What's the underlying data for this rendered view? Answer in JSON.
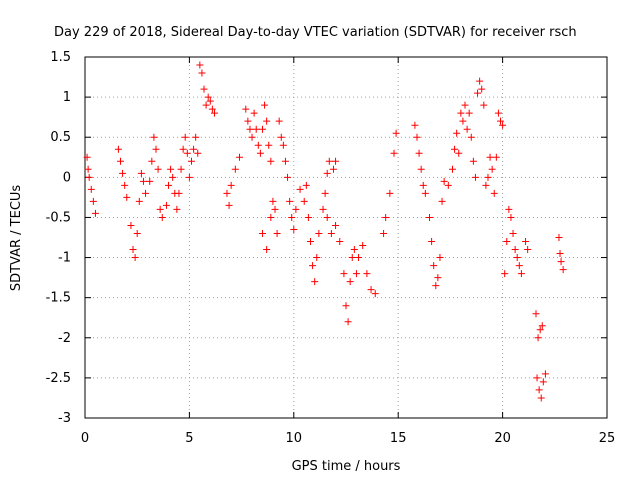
{
  "chart_data": {
    "type": "scatter",
    "title": "Day 229 of 2018, Sidereal Day-to-day VTEC variation (SDTVAR) for receiver rsch",
    "xlabel": "GPS time / hours",
    "ylabel": "SDTVAR / TECUs",
    "xlim": [
      0,
      25
    ],
    "ylim": [
      -3,
      1.5
    ],
    "xticks": [
      "0",
      "5",
      "10",
      "15",
      "20",
      "25"
    ],
    "yticks": [
      "-3",
      "-2.5",
      "-2",
      "-1.5",
      "-1",
      "-0.5",
      "0",
      "0.5",
      "1",
      "1.5"
    ],
    "grid": true,
    "marker": "+",
    "series": [
      {
        "color": "#ff0000",
        "points": [
          [
            0.1,
            0.25
          ],
          [
            0.15,
            0.1
          ],
          [
            0.2,
            0.0
          ],
          [
            0.3,
            -0.15
          ],
          [
            0.4,
            -0.3
          ],
          [
            0.5,
            -0.45
          ],
          [
            1.6,
            0.35
          ],
          [
            1.7,
            0.2
          ],
          [
            1.8,
            0.05
          ],
          [
            1.9,
            -0.1
          ],
          [
            2.0,
            -0.25
          ],
          [
            2.2,
            -0.6
          ],
          [
            2.3,
            -0.9
          ],
          [
            2.4,
            -1.0
          ],
          [
            2.5,
            -0.7
          ],
          [
            2.6,
            -0.3
          ],
          [
            2.7,
            0.05
          ],
          [
            2.8,
            -0.05
          ],
          [
            2.9,
            -0.2
          ],
          [
            3.1,
            -0.05
          ],
          [
            3.2,
            0.2
          ],
          [
            3.3,
            0.5
          ],
          [
            3.4,
            0.35
          ],
          [
            3.5,
            0.1
          ],
          [
            3.6,
            -0.4
          ],
          [
            3.7,
            -0.5
          ],
          [
            3.9,
            -0.35
          ],
          [
            4.0,
            -0.1
          ],
          [
            4.1,
            0.1
          ],
          [
            4.2,
            0.0
          ],
          [
            4.3,
            -0.2
          ],
          [
            4.4,
            -0.4
          ],
          [
            4.5,
            -0.2
          ],
          [
            4.6,
            0.1
          ],
          [
            4.7,
            0.35
          ],
          [
            4.8,
            0.5
          ],
          [
            4.9,
            0.3
          ],
          [
            5.0,
            0.0
          ],
          [
            5.1,
            0.2
          ],
          [
            5.2,
            0.35
          ],
          [
            5.3,
            0.5
          ],
          [
            5.4,
            0.3
          ],
          [
            5.5,
            1.4
          ],
          [
            5.6,
            1.3
          ],
          [
            5.7,
            1.1
          ],
          [
            5.8,
            0.9
          ],
          [
            5.9,
            1.0
          ],
          [
            6.0,
            0.95
          ],
          [
            6.1,
            0.85
          ],
          [
            6.2,
            0.8
          ],
          [
            6.8,
            -0.2
          ],
          [
            6.9,
            -0.35
          ],
          [
            7.0,
            -0.1
          ],
          [
            7.2,
            0.1
          ],
          [
            7.4,
            0.25
          ],
          [
            7.7,
            0.85
          ],
          [
            7.8,
            0.7
          ],
          [
            7.9,
            0.6
          ],
          [
            8.0,
            0.5
          ],
          [
            8.1,
            0.8
          ],
          [
            8.2,
            0.6
          ],
          [
            8.3,
            0.4
          ],
          [
            8.4,
            0.3
          ],
          [
            8.5,
            0.6
          ],
          [
            8.6,
            0.9
          ],
          [
            8.7,
            0.7
          ],
          [
            8.8,
            0.4
          ],
          [
            8.9,
            0.2
          ],
          [
            8.5,
            -0.7
          ],
          [
            8.7,
            -0.9
          ],
          [
            8.9,
            -0.5
          ],
          [
            9.0,
            -0.3
          ],
          [
            9.1,
            -0.4
          ],
          [
            9.2,
            -0.7
          ],
          [
            9.3,
            0.7
          ],
          [
            9.4,
            0.5
          ],
          [
            9.5,
            0.4
          ],
          [
            9.6,
            0.2
          ],
          [
            9.7,
            0.0
          ],
          [
            9.8,
            -0.3
          ],
          [
            9.9,
            -0.5
          ],
          [
            10.0,
            -0.65
          ],
          [
            10.1,
            -0.4
          ],
          [
            10.3,
            -0.15
          ],
          [
            10.5,
            -0.3
          ],
          [
            10.6,
            -0.1
          ],
          [
            10.7,
            -0.5
          ],
          [
            10.8,
            -0.8
          ],
          [
            10.9,
            -1.1
          ],
          [
            11.0,
            -1.3
          ],
          [
            11.1,
            -1.0
          ],
          [
            11.2,
            -0.7
          ],
          [
            11.4,
            -0.4
          ],
          [
            11.5,
            -0.2
          ],
          [
            11.6,
            0.05
          ],
          [
            11.7,
            0.2
          ],
          [
            11.9,
            0.1
          ],
          [
            12.0,
            0.2
          ],
          [
            11.6,
            -0.5
          ],
          [
            11.8,
            -0.7
          ],
          [
            12.0,
            -0.6
          ],
          [
            12.2,
            -0.8
          ],
          [
            12.4,
            -1.2
          ],
          [
            12.5,
            -1.6
          ],
          [
            12.6,
            -1.8
          ],
          [
            12.7,
            -1.3
          ],
          [
            12.8,
            -1.0
          ],
          [
            12.9,
            -0.9
          ],
          [
            13.0,
            -1.2
          ],
          [
            13.1,
            -1.0
          ],
          [
            13.3,
            -0.85
          ],
          [
            13.5,
            -1.2
          ],
          [
            13.7,
            -1.4
          ],
          [
            13.9,
            -1.45
          ],
          [
            14.3,
            -0.7
          ],
          [
            14.4,
            -0.5
          ],
          [
            14.6,
            -0.2
          ],
          [
            14.8,
            0.3
          ],
          [
            14.9,
            0.55
          ],
          [
            15.8,
            0.65
          ],
          [
            15.9,
            0.5
          ],
          [
            16.0,
            0.3
          ],
          [
            16.1,
            0.1
          ],
          [
            16.2,
            -0.1
          ],
          [
            16.3,
            -0.2
          ],
          [
            16.5,
            -0.5
          ],
          [
            16.6,
            -0.8
          ],
          [
            16.7,
            -1.1
          ],
          [
            16.8,
            -1.35
          ],
          [
            16.9,
            -1.25
          ],
          [
            17.0,
            -1.0
          ],
          [
            17.1,
            -0.3
          ],
          [
            17.2,
            -0.05
          ],
          [
            17.4,
            -0.1
          ],
          [
            17.6,
            0.1
          ],
          [
            17.7,
            0.35
          ],
          [
            17.8,
            0.55
          ],
          [
            17.9,
            0.3
          ],
          [
            18.0,
            0.8
          ],
          [
            18.1,
            0.7
          ],
          [
            18.2,
            0.9
          ],
          [
            18.3,
            0.6
          ],
          [
            18.4,
            0.8
          ],
          [
            18.5,
            0.5
          ],
          [
            18.6,
            0.2
          ],
          [
            18.7,
            0.0
          ],
          [
            18.8,
            1.05
          ],
          [
            18.9,
            1.2
          ],
          [
            19.0,
            1.1
          ],
          [
            19.1,
            0.9
          ],
          [
            19.2,
            -0.1
          ],
          [
            19.3,
            0.0
          ],
          [
            19.4,
            0.25
          ],
          [
            19.5,
            0.1
          ],
          [
            19.6,
            -0.2
          ],
          [
            19.7,
            0.25
          ],
          [
            19.8,
            0.8
          ],
          [
            19.9,
            0.7
          ],
          [
            20.0,
            0.65
          ],
          [
            20.1,
            -1.2
          ],
          [
            20.2,
            -0.8
          ],
          [
            20.3,
            -0.4
          ],
          [
            20.4,
            -0.5
          ],
          [
            20.5,
            -0.7
          ],
          [
            20.6,
            -0.9
          ],
          [
            20.7,
            -1.0
          ],
          [
            20.8,
            -1.1
          ],
          [
            20.9,
            -1.2
          ],
          [
            21.1,
            -0.8
          ],
          [
            21.2,
            -0.9
          ],
          [
            21.6,
            -1.7
          ],
          [
            21.7,
            -2.0
          ],
          [
            21.8,
            -1.9
          ],
          [
            21.9,
            -1.85
          ],
          [
            21.65,
            -2.5
          ],
          [
            21.75,
            -2.65
          ],
          [
            21.85,
            -2.75
          ],
          [
            21.95,
            -2.55
          ],
          [
            22.05,
            -2.45
          ],
          [
            22.7,
            -0.75
          ],
          [
            22.75,
            -0.95
          ],
          [
            22.8,
            -1.05
          ],
          [
            22.9,
            -1.15
          ]
        ]
      }
    ]
  }
}
